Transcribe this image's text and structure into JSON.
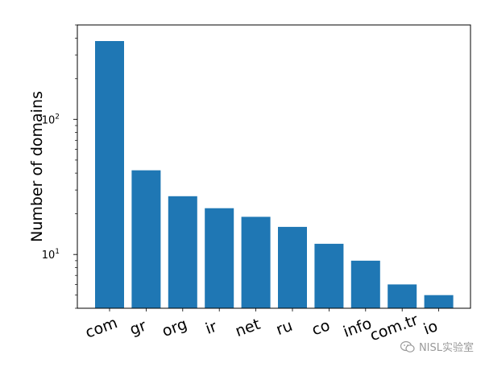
{
  "chart_data": {
    "type": "bar",
    "title": "",
    "xlabel": "",
    "ylabel": "Number of domains",
    "yscale": "log",
    "ylim": [
      4,
      500
    ],
    "y_tick_labels": [
      {
        "base": "10",
        "exp": "1",
        "value": 10
      },
      {
        "base": "10",
        "exp": "2",
        "value": 100
      }
    ],
    "categories": [
      "com",
      "gr",
      "org",
      "ir",
      "net",
      "ru",
      "co",
      "info",
      "com.tr",
      "io"
    ],
    "values": [
      380,
      42,
      27,
      22,
      19,
      16,
      12,
      9,
      6,
      5
    ],
    "bar_color": "#1f77b4",
    "grid": false,
    "legend": "none"
  },
  "watermark": {
    "text": "NISL实验室",
    "icon": "wechat-icon"
  }
}
